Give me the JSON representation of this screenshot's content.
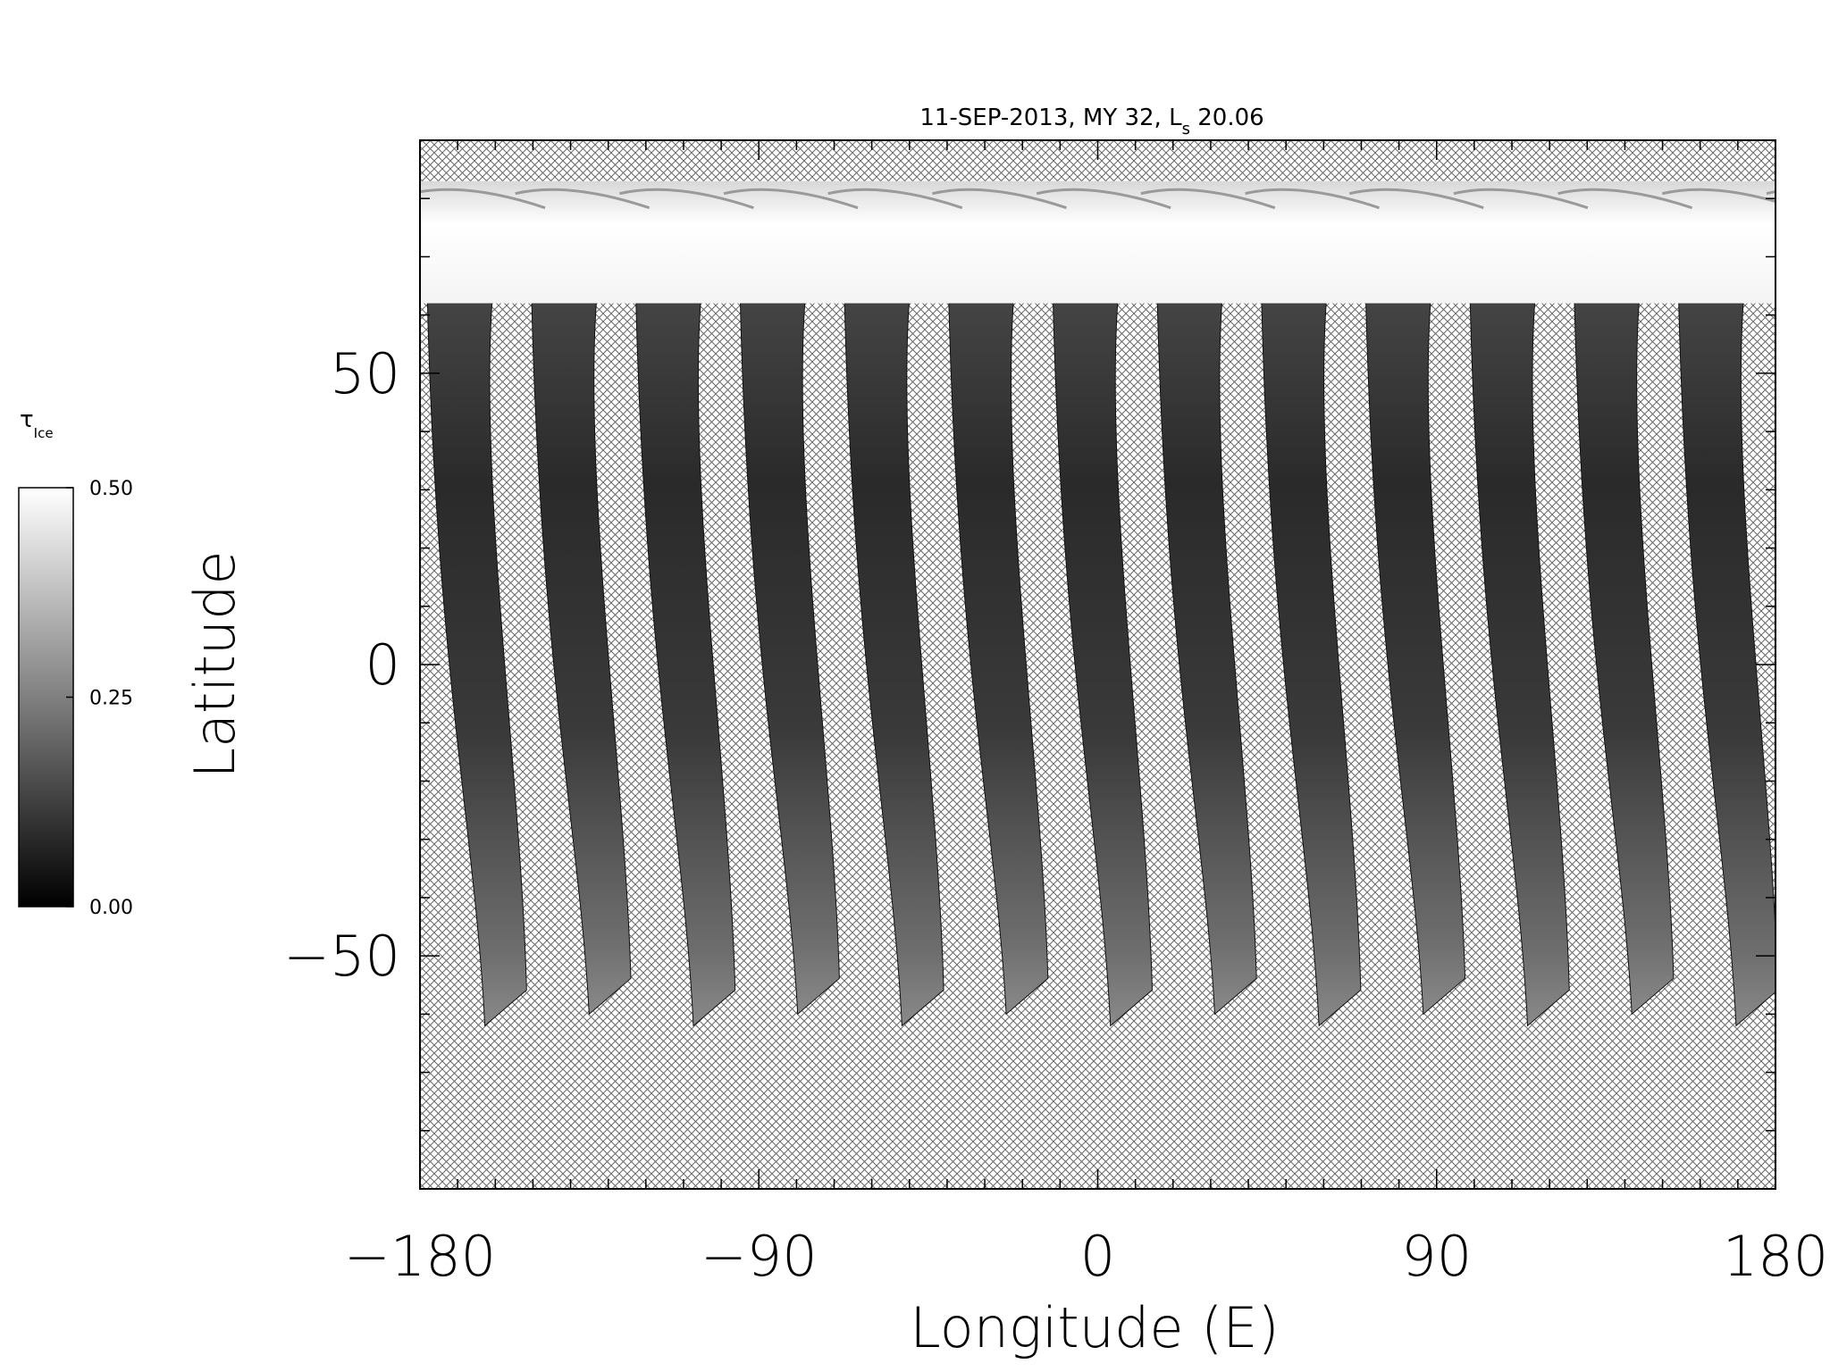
{
  "chart_data": {
    "type": "heatmap",
    "title": "11-SEP-2013, MY 32,  L",
    "title_subscript": "s",
    "title_suffix": " 20.06",
    "xlabel": "Longitude (E)",
    "ylabel": "Latitude",
    "xlim": [
      -180,
      180
    ],
    "ylim": [
      -90,
      90
    ],
    "x_ticks": [
      "−180",
      "−90",
      "0",
      "90",
      "180"
    ],
    "y_ticks": [
      "−50",
      "0",
      "50"
    ],
    "x_tick_values": [
      -180,
      -90,
      0,
      90,
      180
    ],
    "y_tick_values": [
      -50,
      0,
      50
    ],
    "x_minor_step": 10,
    "y_minor_step": 10,
    "no_data_pattern": "crosshatch",
    "swath_count": 13,
    "swath_lat_range": [
      -62,
      83
    ],
    "polar_cap_lat_range": [
      62,
      83
    ],
    "colorbar": {
      "label": "τ",
      "label_subscript": "Ice",
      "min": 0.0,
      "max": 0.5,
      "ticks": [
        "0.00",
        "0.25",
        "0.50"
      ],
      "tick_values": [
        0.0,
        0.25,
        0.5
      ],
      "colormap": "grayscale"
    }
  }
}
